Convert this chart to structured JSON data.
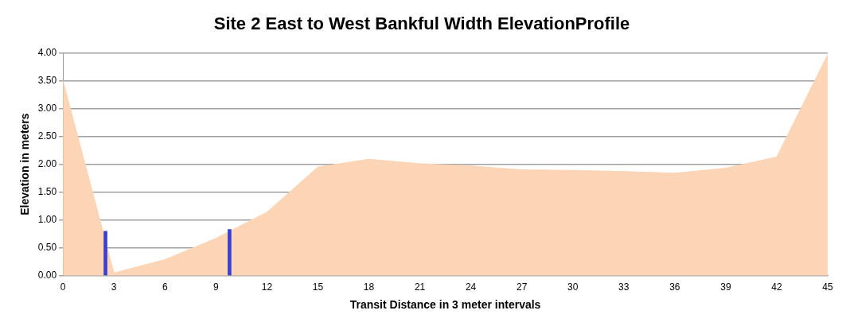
{
  "chart_data": {
    "type": "area",
    "title": "Site 2 East to West Bankful Width ElevationProfile",
    "xlabel": "Transit Distance in 3 meter intervals",
    "ylabel": "Elevation in meters",
    "x": [
      0,
      3,
      6,
      9,
      12,
      15,
      18,
      21,
      24,
      27,
      30,
      33,
      36,
      39,
      42,
      45
    ],
    "series": [
      {
        "color": "#fbd5b5",
        "values": [
          3.5,
          0.05,
          0.29,
          0.67,
          1.14,
          1.95,
          2.09,
          2.01,
          1.97,
          1.9,
          1.89,
          1.87,
          1.84,
          1.93,
          2.13,
          3.97
        ]
      },
      {
        "type": "bar",
        "color": "#3b3fd0",
        "x": [
          2.5,
          9.8
        ],
        "values": [
          0.8,
          0.83
        ]
      }
    ],
    "xlim": [
      0,
      45
    ],
    "xticks": [
      0,
      3,
      6,
      9,
      12,
      15,
      18,
      21,
      24,
      27,
      30,
      33,
      36,
      39,
      42,
      45
    ],
    "ylim": [
      0,
      4
    ],
    "yticks": [
      {
        "value": 0,
        "label": "0.00"
      },
      {
        "value": 0.5,
        "label": "0.50"
      },
      {
        "value": 1,
        "label": "1.00"
      },
      {
        "value": 1.5,
        "label": "1.50"
      },
      {
        "value": 2,
        "label": "2.00"
      },
      {
        "value": 2.5,
        "label": "2.50"
      },
      {
        "value": 3,
        "label": "3.00"
      },
      {
        "value": 3.5,
        "label": "3.50"
      },
      {
        "value": 4,
        "label": "4.00"
      }
    ],
    "grid": "y",
    "legend": false
  }
}
